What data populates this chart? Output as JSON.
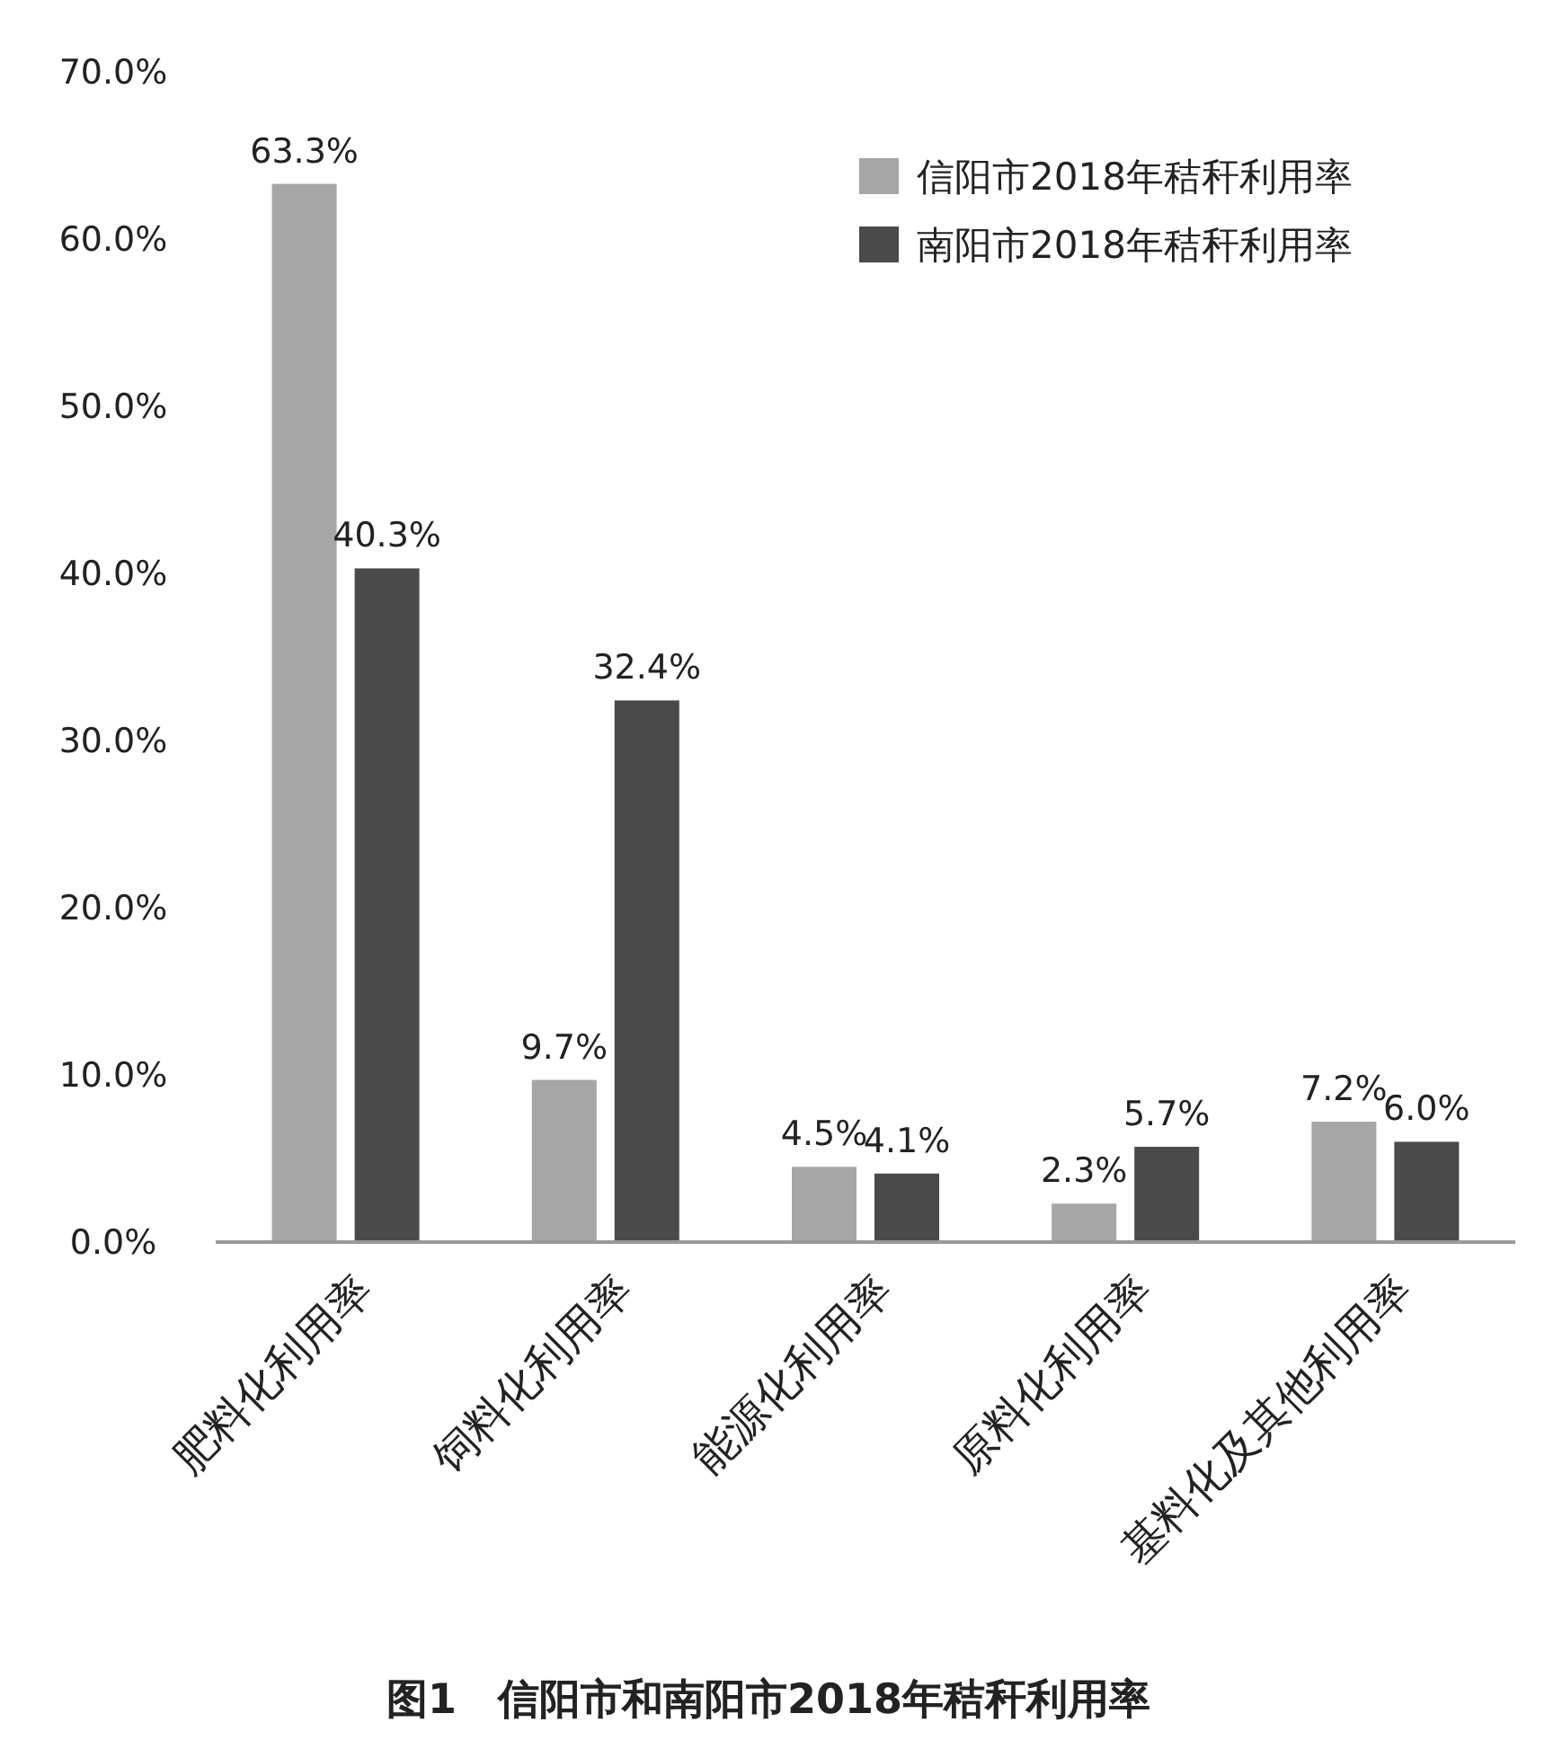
{
  "chart_data": {
    "type": "bar",
    "title": "图1　信阳市和南阳市2018年秸秆利用率",
    "categories": [
      "肥料化利用率",
      "饲料化利用率",
      "能源化利用率",
      "原料化利用率",
      "基料化及其他利用率"
    ],
    "series": [
      {
        "name": "信阳市2018年秸秆利用率",
        "color": "#a6a6a6",
        "values": [
          63.3,
          9.7,
          4.5,
          2.3,
          7.2
        ],
        "value_labels": [
          "63.3%",
          "9.7%",
          "4.5%",
          "2.3%",
          "7.2%"
        ]
      },
      {
        "name": "南阳市2018年秸秆利用率",
        "color": "#4a4a4a",
        "values": [
          40.3,
          32.4,
          4.1,
          5.7,
          6.0
        ],
        "value_labels": [
          "40.3%",
          "32.4%",
          "4.1%",
          "5.7%",
          "6.0%"
        ]
      }
    ],
    "ylim": [
      0,
      70
    ],
    "yticks": [
      {
        "value": 0,
        "label": "0.0%"
      },
      {
        "value": 10,
        "label": "10.0%"
      },
      {
        "value": 20,
        "label": "20.0%"
      },
      {
        "value": 30,
        "label": "30.0%"
      },
      {
        "value": 40,
        "label": "40.0%"
      },
      {
        "value": 50,
        "label": "50.0%"
      },
      {
        "value": 60,
        "label": "60.0%"
      },
      {
        "value": 70,
        "label": "70.0%"
      }
    ],
    "grid": false,
    "legend": "top right"
  }
}
